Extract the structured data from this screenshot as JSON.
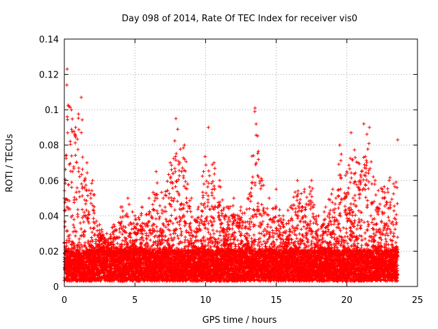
{
  "chart_data": {
    "type": "scatter",
    "title": "Day 098 of 2014, Rate Of TEC Index for receiver vis0",
    "xlabel": "GPS time / hours",
    "ylabel": "ROTI / TECUs",
    "xlim": [
      0,
      25
    ],
    "ylim": [
      0,
      0.14
    ],
    "xticks": [
      0,
      5,
      10,
      15,
      20,
      25
    ],
    "yticks": [
      0,
      0.02,
      0.04,
      0.06,
      0.08,
      0.1,
      0.12,
      0.14
    ],
    "xtick_labels": [
      "0",
      "5",
      "10",
      "15",
      "20",
      "25"
    ],
    "ytick_labels": [
      "0",
      "0.02",
      "0.04",
      "0.06",
      "0.08",
      "0.1",
      "0.12",
      "0.14"
    ],
    "grid": true,
    "marker": "+",
    "marker_color": "#ff0000",
    "series": [
      {
        "name": "vis0",
        "envelope_note": "dense ROTI point cloud; upper envelope per hour bin (hour, max ROTI)",
        "upper_envelope": [
          [
            0.0,
            0.05
          ],
          [
            0.2,
            0.123
          ],
          [
            0.5,
            0.1
          ],
          [
            0.8,
            0.09
          ],
          [
            1.2,
            0.107
          ],
          [
            1.6,
            0.07
          ],
          [
            2.0,
            0.06
          ],
          [
            2.5,
            0.035
          ],
          [
            3.0,
            0.03
          ],
          [
            3.5,
            0.035
          ],
          [
            4.0,
            0.045
          ],
          [
            4.5,
            0.05
          ],
          [
            5.0,
            0.04
          ],
          [
            5.5,
            0.045
          ],
          [
            6.0,
            0.05
          ],
          [
            6.5,
            0.065
          ],
          [
            7.0,
            0.05
          ],
          [
            7.5,
            0.07
          ],
          [
            7.9,
            0.095
          ],
          [
            8.5,
            0.08
          ],
          [
            9.0,
            0.05
          ],
          [
            9.5,
            0.045
          ],
          [
            10.2,
            0.09
          ],
          [
            10.6,
            0.07
          ],
          [
            11.0,
            0.06
          ],
          [
            11.5,
            0.045
          ],
          [
            12.0,
            0.05
          ],
          [
            12.5,
            0.045
          ],
          [
            13.0,
            0.05
          ],
          [
            13.5,
            0.101
          ],
          [
            14.0,
            0.06
          ],
          [
            14.5,
            0.05
          ],
          [
            15.0,
            0.055
          ],
          [
            15.5,
            0.04
          ],
          [
            16.0,
            0.045
          ],
          [
            16.5,
            0.06
          ],
          [
            17.0,
            0.055
          ],
          [
            17.5,
            0.06
          ],
          [
            18.0,
            0.04
          ],
          [
            18.5,
            0.045
          ],
          [
            19.0,
            0.055
          ],
          [
            19.5,
            0.08
          ],
          [
            20.0,
            0.065
          ],
          [
            20.3,
            0.087
          ],
          [
            20.8,
            0.07
          ],
          [
            21.2,
            0.092
          ],
          [
            21.6,
            0.09
          ],
          [
            22.0,
            0.06
          ],
          [
            22.5,
            0.055
          ],
          [
            23.0,
            0.06
          ],
          [
            23.6,
            0.083
          ]
        ],
        "baseline_range": [
          0.003,
          0.02
        ]
      }
    ]
  }
}
